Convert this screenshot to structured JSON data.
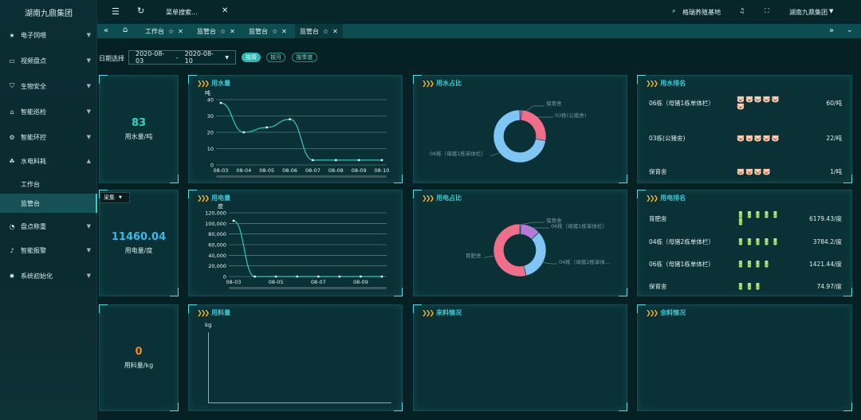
{
  "brand": "湖南九鼎集团",
  "sidebar": {
    "items": [
      {
        "label": "电子饲喂",
        "icon": "star-icon"
      },
      {
        "label": "视频盘点",
        "icon": "video-icon"
      },
      {
        "label": "生物安全",
        "icon": "shield-icon"
      },
      {
        "label": "智能巡检",
        "icon": "home-icon"
      },
      {
        "label": "智能环控",
        "icon": "settings-icon"
      },
      {
        "label": "水电料耗",
        "icon": "leaf-icon"
      },
      {
        "label": "盘点称重",
        "icon": "dashboard-icon"
      },
      {
        "label": "智能报警",
        "icon": "bell-icon"
      },
      {
        "label": "系统初始化",
        "icon": "gear-icon"
      }
    ],
    "subitems": [
      "工作台",
      "监管台"
    ]
  },
  "topbar": {
    "menu_search": "菜单搜索...",
    "farm": "格瑞养殖基地",
    "org": "湖南九鼎集团"
  },
  "tabs": [
    "工作台",
    "监管台",
    "监管台",
    "监管台"
  ],
  "filter": {
    "label": "日期选择",
    "start": "2020-08-03",
    "sep": "-",
    "end": "2020-08-10",
    "btn_week": "按周",
    "btn_month": "按月",
    "btn_season": "按季度"
  },
  "float_select": "采集",
  "stats": {
    "water": {
      "value": "83",
      "label": "用水量/吨",
      "color": "#2fd4c6"
    },
    "power": {
      "value": "11460.04",
      "label": "用电量/度",
      "color": "#3bb7e8"
    },
    "feed": {
      "value": "0",
      "label": "用料量/kg",
      "color": "#f08a1c"
    }
  },
  "panels": {
    "water": "用水量",
    "water_share": "用水占比",
    "water_rank": "用水排名",
    "power": "用电量",
    "power_share": "用电占比",
    "power_rank": "用电排名",
    "feed": "用料量",
    "feed_in": "来料情况",
    "feed_left": "余料情况"
  },
  "water_rank": [
    {
      "name": "06栋（母猪1栋单体栏）",
      "icons": "🐷🐷🐷🐷🐷🐷",
      "value": "60/吨"
    },
    {
      "name": "03栋(公猪舍)",
      "icons": "🐷🐷🐷🐷🐷",
      "value": "22/吨"
    },
    {
      "name": "保育舍",
      "icons": "🐷🐷🐷🐷",
      "value": "1/吨"
    }
  ],
  "power_rank": [
    {
      "name": "育肥舍",
      "icons": "🔋🔋🔋🔋🔋🔋",
      "value": "6179.43/度"
    },
    {
      "name": "04栋（母猪2栋单体栏）",
      "icons": "🔋🔋🔋🔋🔋",
      "value": "3784.2/度"
    },
    {
      "name": "06栋（母猪1栋单体栏）",
      "icons": "🔋🔋🔋🔋",
      "value": "1421.44/度"
    },
    {
      "name": "保育舍",
      "icons": "🔋🔋🔋",
      "value": "74.97/度"
    }
  ],
  "donut_labels": {
    "water": [
      "保育舍",
      "03栋(公猪舍)",
      "06栋（母猪1栋单体栏）"
    ],
    "power": [
      "保育舍",
      "06栋（母猪1栋单体栏）",
      "育肥舍",
      "04栋（母猪2栋单体..."
    ]
  },
  "colors": {
    "accent": "#2fd0c8",
    "gold": "#f0b030",
    "water_blue": "#7fc6f4",
    "purple": "#b47ad9",
    "pink": "#f06e8a"
  },
  "chart_data": [
    {
      "type": "line",
      "title": "用水量",
      "ylabel": "吨",
      "categories": [
        "08-03",
        "08-04",
        "08-05",
        "08-06",
        "08-07",
        "08-08",
        "08-09",
        "08-10"
      ],
      "values": [
        38,
        20,
        23,
        28,
        3,
        3,
        3,
        3
      ],
      "ylim": [
        0,
        40
      ],
      "yticks": [
        0,
        10,
        20,
        30,
        40
      ]
    },
    {
      "type": "line",
      "title": "用电量",
      "ylabel": "度",
      "categories": [
        "08-03",
        "08-05",
        "08-07",
        "08-09"
      ],
      "x": [
        "08-03",
        "08-04",
        "08-05",
        "08-06",
        "08-07",
        "08-08",
        "08-09",
        "08-10"
      ],
      "values": [
        105000,
        0,
        0,
        0,
        0,
        0,
        0,
        0
      ],
      "ylim": [
        0,
        120000
      ],
      "yticks": [
        "0",
        "20,000",
        "40,000",
        "60,000",
        "80,000",
        "100,000",
        "120,000"
      ]
    },
    {
      "type": "pie",
      "title": "用水占比",
      "slices": [
        {
          "name": "06栋（母猪1栋单体栏）",
          "value": 60
        },
        {
          "name": "03栋(公猪舍)",
          "value": 22
        },
        {
          "name": "保育舍",
          "value": 1
        }
      ]
    },
    {
      "type": "pie",
      "title": "用电占比",
      "slices": [
        {
          "name": "育肥舍",
          "value": 6179.43
        },
        {
          "name": "04栋（母猪2栋单体栏）",
          "value": 3784.2
        },
        {
          "name": "06栋（母猪1栋单体栏）",
          "value": 1421.44
        },
        {
          "name": "保育舍",
          "value": 74.97
        }
      ]
    },
    {
      "type": "line",
      "title": "用料量",
      "ylabel": "kg",
      "values": []
    }
  ]
}
